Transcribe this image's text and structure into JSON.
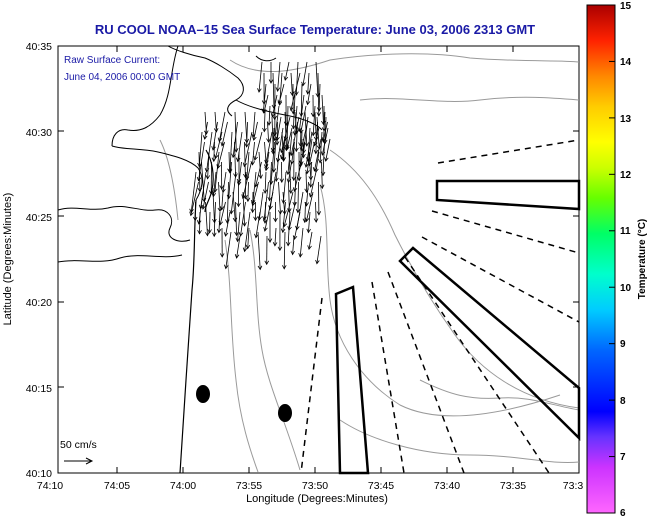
{
  "title": "RU COOL  NOAA–15  Sea Surface Temperature:  June 03, 2006 2313 GMT",
  "overlay": {
    "line1": "Raw Surface Current:",
    "line2": "June 04, 2006 00:00 GMT",
    "scale_label": "50 cm/s"
  },
  "axes": {
    "xlabel": "Longitude (Degrees:Minutes)",
    "ylabel": "Latitude (Degrees:Minutes)",
    "xticks": [
      "74:10",
      "74:05",
      "74:00",
      "73:55",
      "73:50",
      "73:45",
      "73:40",
      "73:35",
      "73:3"
    ],
    "yticks": [
      "40:35",
      "40:30",
      "40:25",
      "40:20",
      "40:15",
      "40:10"
    ]
  },
  "colorbar": {
    "label": "Temperature (°C)",
    "ticks": [
      "15",
      "14",
      "13",
      "12",
      "11",
      "10",
      "9",
      "8",
      "7",
      "6"
    ],
    "min": 6,
    "max": 15
  },
  "icons": {
    "current-vectors": "arrow-field",
    "scale-arrow": "arrow-right-icon",
    "station-markers": "filled-ellipse"
  }
}
